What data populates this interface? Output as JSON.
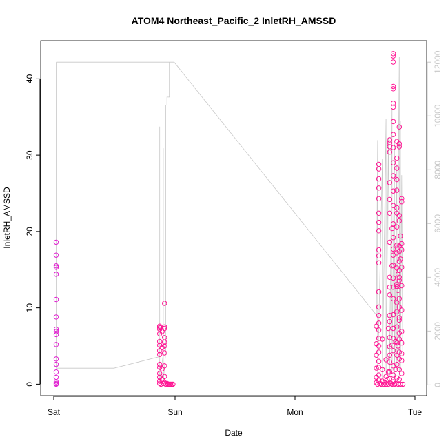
{
  "chart_data": {
    "type": "scatter",
    "title": "ATOM4 Northeast_Pacific_2 InletRH_AMSSD",
    "xlabel": "Date",
    "ylabel": "InletRH_AMSSD",
    "x_ticks": [
      "Sat",
      "Sun",
      "Mon",
      "Tue"
    ],
    "y_ticks": [
      0,
      10,
      20,
      30,
      40
    ],
    "y2_ticks": [
      0,
      2000,
      4000,
      6000,
      8000,
      10000,
      12000
    ],
    "xlim": [
      0,
      3.1
    ],
    "ylim": [
      -1.5,
      45
    ],
    "y2lim": [
      -400,
      12800
    ],
    "colors": {
      "points_primary": "#ff1493",
      "points_secondary": "#e020d0",
      "line": "#c8c8c8",
      "axis": "#000000",
      "right_axis": "#c8c8c8"
    },
    "series": [
      {
        "type": "scatter",
        "points": [
          [
            0.02,
            18.6
          ],
          [
            0.02,
            16.9
          ],
          [
            0.02,
            15.5
          ],
          [
            0.02,
            15.3
          ],
          [
            0.02,
            14.4
          ],
          [
            0.02,
            11.1
          ],
          [
            0.02,
            8.8
          ],
          [
            0.02,
            7.2
          ],
          [
            0.02,
            6.9
          ],
          [
            0.02,
            6.5
          ],
          [
            0.02,
            5.2
          ],
          [
            0.02,
            3.3
          ],
          [
            0.02,
            2.6
          ],
          [
            0.02,
            1.6
          ],
          [
            0.02,
            0.9
          ],
          [
            0.02,
            0.3
          ],
          [
            0.02,
            0.1
          ],
          [
            0.02,
            0.0
          ],
          [
            0.88,
            7.6
          ],
          [
            0.88,
            7.4
          ],
          [
            0.88,
            7.2
          ],
          [
            0.88,
            6.6
          ],
          [
            0.88,
            5.6
          ],
          [
            0.88,
            5.1
          ],
          [
            0.88,
            4.4
          ],
          [
            0.88,
            3.9
          ],
          [
            0.88,
            2.6
          ],
          [
            0.88,
            2.2
          ],
          [
            0.88,
            1.4
          ],
          [
            0.88,
            0.9
          ],
          [
            0.88,
            0.4
          ],
          [
            0.88,
            0.1
          ],
          [
            0.89,
            0.0
          ],
          [
            0.9,
            6.9
          ],
          [
            0.9,
            4.8
          ],
          [
            0.9,
            2.0
          ],
          [
            0.9,
            0.6
          ],
          [
            0.91,
            0.1
          ],
          [
            0.92,
            10.6
          ],
          [
            0.92,
            7.5
          ],
          [
            0.92,
            7.3
          ],
          [
            0.92,
            6.1
          ],
          [
            0.92,
            5.5
          ],
          [
            0.92,
            5.0
          ],
          [
            0.92,
            4.1
          ],
          [
            0.92,
            2.4
          ],
          [
            0.92,
            1.0
          ],
          [
            0.92,
            0.2
          ],
          [
            0.93,
            0.0
          ],
          [
            0.94,
            0.1
          ],
          [
            0.95,
            0.0
          ],
          [
            0.96,
            0.0
          ],
          [
            0.97,
            0.0
          ],
          [
            0.98,
            0.0
          ],
          [
            0.99,
            0.0
          ],
          [
            2.68,
            7.6
          ],
          [
            2.68,
            5.3
          ],
          [
            2.68,
            3.8
          ],
          [
            2.68,
            2.1
          ],
          [
            2.68,
            0.9
          ],
          [
            2.68,
            0.2
          ],
          [
            2.69,
            0.0
          ],
          [
            2.7,
            28.8
          ],
          [
            2.7,
            28.2
          ],
          [
            2.7,
            26.9
          ],
          [
            2.7,
            25.7
          ],
          [
            2.7,
            24.3
          ],
          [
            2.7,
            22.4
          ],
          [
            2.7,
            21.2
          ],
          [
            2.7,
            20.1
          ],
          [
            2.7,
            17.6
          ],
          [
            2.7,
            16.8
          ],
          [
            2.7,
            15.9
          ],
          [
            2.7,
            12.1
          ],
          [
            2.7,
            10.1
          ],
          [
            2.7,
            9.0
          ],
          [
            2.7,
            8.0
          ],
          [
            2.7,
            7.1
          ],
          [
            2.7,
            6.0
          ],
          [
            2.7,
            5.0
          ],
          [
            2.7,
            4.2
          ],
          [
            2.7,
            3.0
          ],
          [
            2.7,
            2.2
          ],
          [
            2.7,
            1.2
          ],
          [
            2.7,
            0.5
          ],
          [
            2.71,
            0.1
          ],
          [
            2.72,
            0.0
          ],
          [
            2.73,
            5.9
          ],
          [
            2.73,
            1.9
          ],
          [
            2.73,
            0.4
          ],
          [
            2.74,
            0.0
          ],
          [
            2.75,
            0.2
          ],
          [
            2.76,
            1.0
          ],
          [
            2.76,
            3.2
          ],
          [
            2.76,
            0.0
          ],
          [
            2.77,
            0.6
          ],
          [
            2.78,
            7.3
          ],
          [
            2.78,
            1.6
          ],
          [
            2.78,
            0.0
          ],
          [
            2.79,
            32.0
          ],
          [
            2.79,
            31.6
          ],
          [
            2.79,
            31.1
          ],
          [
            2.79,
            30.4
          ],
          [
            2.79,
            26.4
          ],
          [
            2.79,
            24.2
          ],
          [
            2.79,
            22.4
          ],
          [
            2.79,
            18.6
          ],
          [
            2.79,
            14.0
          ],
          [
            2.79,
            12.7
          ],
          [
            2.79,
            11.7
          ],
          [
            2.79,
            9.0
          ],
          [
            2.79,
            8.2
          ],
          [
            2.79,
            6.1
          ],
          [
            2.79,
            4.9
          ],
          [
            2.79,
            3.8
          ],
          [
            2.79,
            2.9
          ],
          [
            2.79,
            1.6
          ],
          [
            2.79,
            0.7
          ],
          [
            2.8,
            0.1
          ],
          [
            2.81,
            0.0
          ],
          [
            2.81,
            20.4
          ],
          [
            2.81,
            15.5
          ],
          [
            2.81,
            5.1
          ],
          [
            2.82,
            43.3
          ],
          [
            2.82,
            43.0
          ],
          [
            2.82,
            42.2
          ],
          [
            2.82,
            39.0
          ],
          [
            2.82,
            38.7
          ],
          [
            2.82,
            36.8
          ],
          [
            2.82,
            36.3
          ],
          [
            2.82,
            34.4
          ],
          [
            2.82,
            32.7
          ],
          [
            2.82,
            31.0
          ],
          [
            2.82,
            29.0
          ],
          [
            2.82,
            27.3
          ],
          [
            2.82,
            25.3
          ],
          [
            2.82,
            23.4
          ],
          [
            2.82,
            21.0
          ],
          [
            2.82,
            19.2
          ],
          [
            2.82,
            17.7
          ],
          [
            2.82,
            16.9
          ],
          [
            2.82,
            15.6
          ],
          [
            2.82,
            13.9
          ],
          [
            2.82,
            12.7
          ],
          [
            2.82,
            11.2
          ],
          [
            2.82,
            9.1
          ],
          [
            2.82,
            7.3
          ],
          [
            2.82,
            6.0
          ],
          [
            2.82,
            4.4
          ],
          [
            2.82,
            2.4
          ],
          [
            2.82,
            1.2
          ],
          [
            2.82,
            0.3
          ],
          [
            2.83,
            0.0
          ],
          [
            2.84,
            5.6
          ],
          [
            2.84,
            1.9
          ],
          [
            2.84,
            0.1
          ],
          [
            2.85,
            31.8
          ],
          [
            2.85,
            29.6
          ],
          [
            2.85,
            28.3
          ],
          [
            2.85,
            26.8
          ],
          [
            2.85,
            25.4
          ],
          [
            2.85,
            23.1
          ],
          [
            2.85,
            22.4
          ],
          [
            2.85,
            20.6
          ],
          [
            2.85,
            18.2
          ],
          [
            2.85,
            17.2
          ],
          [
            2.85,
            15.2
          ],
          [
            2.85,
            13.1
          ],
          [
            2.85,
            12.8
          ],
          [
            2.85,
            10.7
          ],
          [
            2.85,
            9.5
          ],
          [
            2.85,
            7.5
          ],
          [
            2.85,
            5.4
          ],
          [
            2.85,
            3.8
          ],
          [
            2.85,
            2.6
          ],
          [
            2.85,
            0.8
          ],
          [
            2.86,
            0.0
          ],
          [
            2.86,
            14.4
          ],
          [
            2.86,
            12.3
          ],
          [
            2.86,
            5.0
          ],
          [
            2.87,
            33.7
          ],
          [
            2.87,
            31.5
          ],
          [
            2.87,
            31.1
          ],
          [
            2.87,
            22.1
          ],
          [
            2.87,
            21.4
          ],
          [
            2.87,
            18.1
          ],
          [
            2.87,
            17.4
          ],
          [
            2.87,
            16.1
          ],
          [
            2.87,
            14.9
          ],
          [
            2.87,
            14.0
          ],
          [
            2.87,
            13.6
          ],
          [
            2.87,
            11.2
          ],
          [
            2.87,
            10.1
          ],
          [
            2.87,
            8.7
          ],
          [
            2.87,
            8.4
          ],
          [
            2.87,
            6.7
          ],
          [
            2.87,
            5.9
          ],
          [
            2.87,
            4.2
          ],
          [
            2.87,
            3.3
          ],
          [
            2.87,
            1.9
          ],
          [
            2.87,
            0.6
          ],
          [
            2.88,
            0.0
          ],
          [
            2.88,
            19.4
          ],
          [
            2.88,
            16.4
          ],
          [
            2.89,
            24.3
          ],
          [
            2.89,
            23.9
          ],
          [
            2.89,
            18.4
          ],
          [
            2.89,
            17.6
          ],
          [
            2.89,
            15.3
          ],
          [
            2.89,
            12.9
          ],
          [
            2.89,
            9.7
          ],
          [
            2.89,
            6.9
          ],
          [
            2.89,
            5.4
          ],
          [
            2.89,
            4.0
          ],
          [
            2.89,
            3.1
          ],
          [
            2.89,
            1.4
          ],
          [
            2.9,
            0.0
          ]
        ]
      },
      {
        "type": "line",
        "axis": "right",
        "points": [
          [
            0.02,
            12000
          ],
          [
            0.02,
            11600
          ],
          [
            0.02,
            9600
          ],
          [
            0.02,
            5000
          ],
          [
            0.02,
            1300
          ],
          [
            0.02,
            620
          ],
          [
            0.5,
            620
          ],
          [
            0.88,
            1050
          ],
          [
            0.88,
            9600
          ],
          [
            0.88,
            180
          ],
          [
            0.91,
            1150
          ],
          [
            0.91,
            8800
          ],
          [
            0.91,
            100
          ],
          [
            0.93,
            1200
          ],
          [
            0.93,
            10400
          ],
          [
            0.94,
            10400
          ],
          [
            0.94,
            10700
          ],
          [
            0.96,
            10700
          ],
          [
            0.96,
            12000
          ],
          [
            0.98,
            12000
          ],
          [
            0.02,
            12000
          ],
          [
            0.98,
            12000
          ],
          [
            1.0,
            12000
          ],
          [
            2.68,
            2600
          ],
          [
            2.69,
            9100
          ],
          [
            2.69,
            200
          ],
          [
            2.73,
            8400
          ],
          [
            2.73,
            250
          ],
          [
            2.76,
            9900
          ],
          [
            2.76,
            400
          ],
          [
            2.78,
            9200
          ],
          [
            2.79,
            300
          ],
          [
            2.81,
            10300
          ],
          [
            2.81,
            500
          ],
          [
            2.83,
            9000
          ],
          [
            2.83,
            200
          ],
          [
            2.85,
            8200
          ],
          [
            2.85,
            600
          ],
          [
            2.87,
            12200
          ],
          [
            2.87,
            300
          ],
          [
            2.88,
            9800
          ],
          [
            2.88,
            500
          ],
          [
            2.89,
            7800
          ],
          [
            2.9,
            200
          ]
        ]
      }
    ]
  }
}
